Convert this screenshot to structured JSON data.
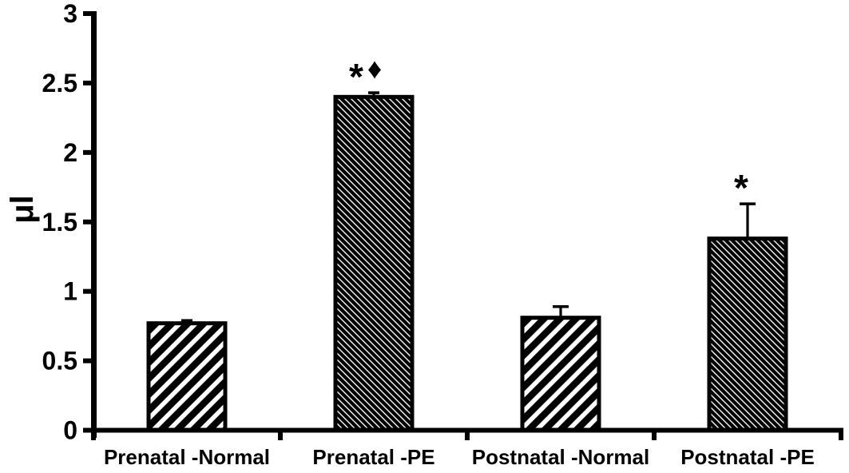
{
  "chart_data": {
    "type": "bar",
    "title": "",
    "xlabel": "",
    "ylabel": "μl",
    "categories": [
      "Prenatal -Normal",
      "Prenatal -PE",
      "Postnatal -Normal",
      "Postnatal -PE"
    ],
    "values": [
      0.77,
      2.4,
      0.81,
      1.38
    ],
    "errors_up": [
      0.02,
      0.03,
      0.08,
      0.25
    ],
    "ylim": [
      0,
      3
    ],
    "yticks": [
      0,
      0.5,
      1,
      1.5,
      2,
      2.5,
      3
    ],
    "ytick_labels": [
      "0",
      "0.5",
      "1",
      "1.5",
      "2",
      "2.5",
      "3"
    ],
    "grid": false,
    "legend": null,
    "bar_styles": [
      {
        "hatch": "/",
        "density": "wide"
      },
      {
        "hatch": "\\",
        "density": "dense"
      },
      {
        "hatch": "/",
        "density": "wide"
      },
      {
        "hatch": "\\",
        "density": "dense"
      }
    ],
    "annotations": [
      {
        "category_index": 1,
        "symbols": [
          "*",
          "♦"
        ]
      },
      {
        "category_index": 3,
        "symbols": [
          "*"
        ]
      }
    ],
    "colors": {
      "background": "#ffffff",
      "bar_fill": "#ffffff",
      "bar_border": "#000000",
      "hatch": "#000000",
      "axis": "#000000",
      "text": "#000000"
    }
  }
}
